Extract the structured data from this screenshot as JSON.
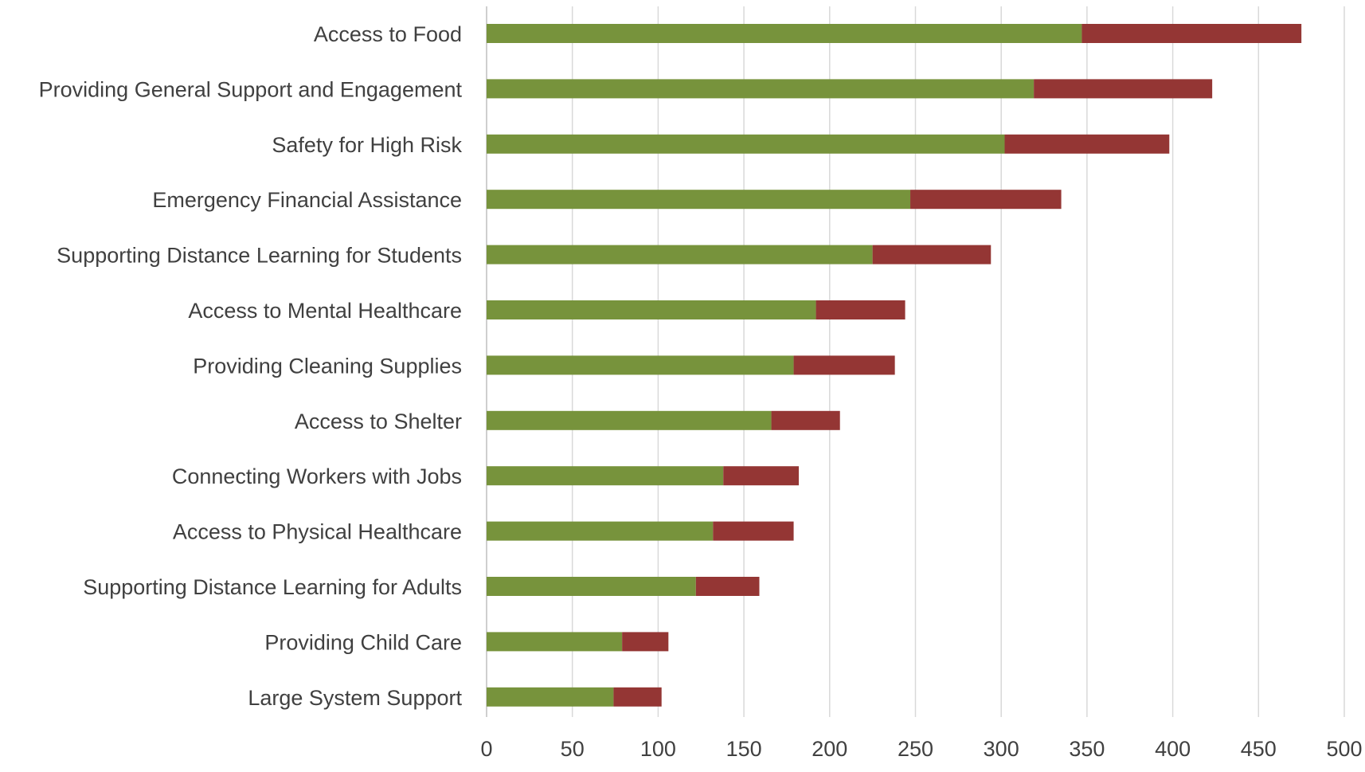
{
  "chart_data": {
    "type": "bar",
    "orientation": "horizontal",
    "stacked": true,
    "title": "",
    "xlabel": "",
    "ylabel": "",
    "xlim": [
      0,
      500
    ],
    "x_ticks": [
      0,
      50,
      100,
      150,
      200,
      250,
      300,
      350,
      400,
      450,
      500
    ],
    "grid": "vertical",
    "legend": "none",
    "categories": [
      "Access to Food",
      "Providing General Support and Engagement",
      "Safety for High Risk",
      "Emergency Financial Assistance",
      "Supporting Distance Learning for Students",
      "Access to Mental Healthcare",
      "Providing Cleaning Supplies",
      "Access to Shelter",
      "Connecting Workers with Jobs",
      "Access to Physical Healthcare",
      "Supporting Distance Learning for Adults",
      "Providing Child Care",
      "Large System Support"
    ],
    "series": [
      {
        "color": "#77933C",
        "values": [
          347,
          319,
          302,
          247,
          225,
          192,
          179,
          166,
          138,
          132,
          122,
          79,
          74
        ]
      },
      {
        "color": "#943634",
        "values": [
          128,
          104,
          96,
          88,
          69,
          52,
          59,
          40,
          44,
          47,
          37,
          27,
          28
        ]
      }
    ]
  }
}
